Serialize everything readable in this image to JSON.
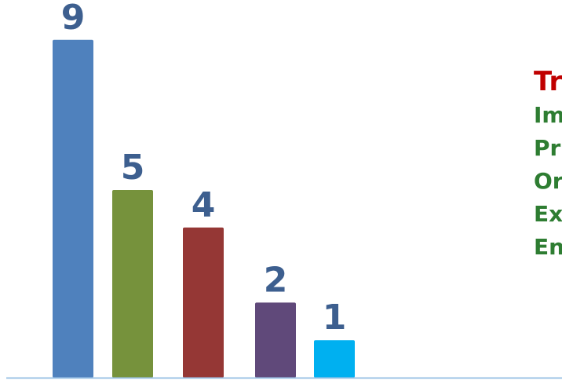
{
  "chart_data": {
    "type": "bar",
    "categories": [
      "",
      "",
      "",
      "",
      ""
    ],
    "values": [
      9,
      5,
      4,
      2,
      1
    ],
    "data_labels": [
      "9",
      "5",
      "4",
      "2",
      "1"
    ],
    "colors": [
      "#4f81bd",
      "#76923c",
      "#953735",
      "#60497a",
      "#00b0f0"
    ],
    "label_color": "#3d5f8f",
    "axis_color": "#9dc3e6",
    "ylim": [
      0,
      10
    ],
    "grid": false,
    "title": "",
    "xlabel": "",
    "ylabel": ""
  },
  "legend": {
    "title": "Tr",
    "title_color": "#c00000",
    "item_color": "#2e7d32",
    "items": [
      "Im",
      "Pr",
      "Or",
      "Ex",
      "En"
    ]
  }
}
